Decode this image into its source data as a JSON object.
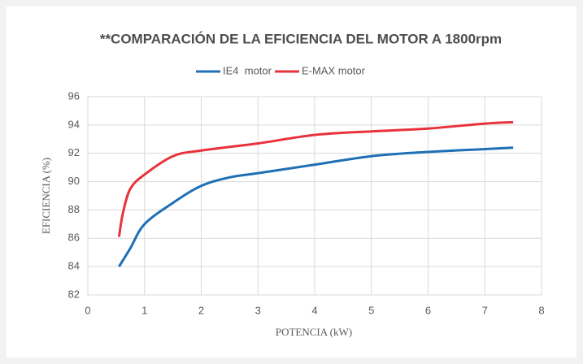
{
  "chart_data": {
    "type": "line",
    "title": "**COMPARACIÓN DE LA EFICIENCIA DEL MOTOR A 1800rpm",
    "x_label": "POTENCIA (kW)",
    "y_label": "EFICIENCIA (%)",
    "xlim": [
      0,
      8
    ],
    "xticks": [
      0,
      1,
      2,
      3,
      4,
      5,
      6,
      7,
      8
    ],
    "ylim": [
      82,
      96
    ],
    "yticks": [
      82,
      84,
      86,
      88,
      90,
      92,
      94,
      96
    ],
    "grid": true,
    "legend": "top",
    "series": [
      {
        "name": "IE4  motor",
        "color": "#1f6fb5",
        "x": [
          0.55,
          0.75,
          1,
          1.5,
          2,
          2.5,
          3,
          4,
          5,
          6,
          7,
          7.5
        ],
        "values": [
          84,
          85.3,
          87,
          88.5,
          89.7,
          90.3,
          90.6,
          91.2,
          91.8,
          92.1,
          92.3,
          92.4
        ]
      },
      {
        "name": "E-MAX motor",
        "color": "#e8323c",
        "x": [
          0.55,
          0.62,
          0.75,
          1,
          1.5,
          2,
          3,
          4,
          5,
          6,
          7,
          7.5
        ],
        "values": [
          86.1,
          87.8,
          89.5,
          90.5,
          91.8,
          92.2,
          92.7,
          93.3,
          93.55,
          93.75,
          94.1,
          94.2
        ]
      }
    ]
  }
}
